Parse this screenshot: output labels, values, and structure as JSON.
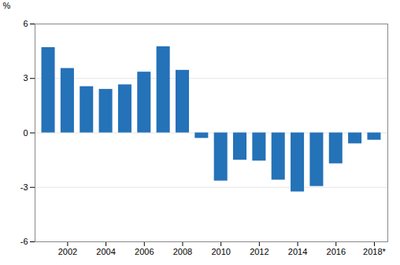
{
  "chart_data": {
    "type": "bar",
    "x": [
      2001,
      2002,
      2003,
      2004,
      2005,
      2006,
      2007,
      2008,
      2009,
      2010,
      2011,
      2012,
      2013,
      2014,
      2015,
      2016,
      2017,
      2018
    ],
    "values": [
      4.7,
      3.55,
      2.55,
      2.4,
      2.65,
      3.35,
      4.75,
      3.45,
      -0.3,
      -2.65,
      -1.5,
      -1.55,
      -2.6,
      -3.25,
      -2.95,
      -1.7,
      -0.6,
      -0.4
    ],
    "color": "#2472b8",
    "ylabel": "%",
    "xlim": [
      2000.3,
      2018.7
    ],
    "xticks": [
      2002,
      2004,
      2006,
      2008,
      2010,
      2012,
      2014,
      2016,
      {
        "value": 2018,
        "label": "2018*"
      }
    ],
    "ylim": [
      -6,
      6
    ],
    "yticks": [
      -6,
      -3,
      0,
      3,
      6
    ],
    "grid": true
  }
}
